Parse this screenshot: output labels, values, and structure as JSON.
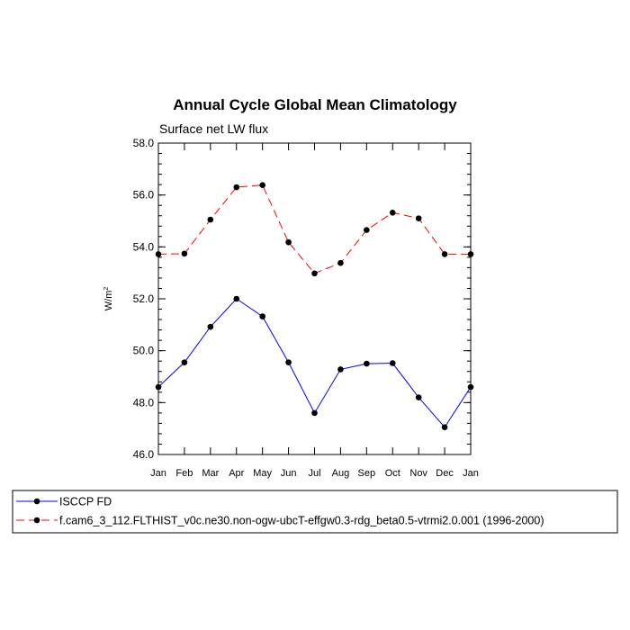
{
  "chart_data": {
    "type": "line",
    "title": "Annual Cycle Global Mean Climatology",
    "subtitle": "Surface net LW flux",
    "ylabel": "W/m",
    "ylabel_superscript": "2",
    "ylim": [
      46.0,
      58.0
    ],
    "yticks": [
      "46.0",
      "48.0",
      "50.0",
      "52.0",
      "54.0",
      "56.0",
      "58.0"
    ],
    "categories": [
      "Jan",
      "Feb",
      "Mar",
      "Apr",
      "May",
      "Jun",
      "Jul",
      "Aug",
      "Sep",
      "Oct",
      "Nov",
      "Dec",
      "Jan"
    ],
    "series": [
      {
        "name": "ISCCP FD",
        "color": "#0000ff",
        "dash": "solid",
        "values": [
          48.6,
          49.55,
          50.92,
          52.0,
          51.32,
          49.55,
          47.6,
          49.28,
          49.5,
          49.52,
          48.2,
          47.05,
          48.6
        ]
      },
      {
        "name": "f.cam6_3_112.FLTHIST_v0c.ne30.non-ogw-ubcT-effgw0.3-rdg_beta0.5-vtrmi2.0.001 (1996-2000)",
        "color": "#ff0000",
        "dash": "dashed",
        "values": [
          53.72,
          53.74,
          55.05,
          56.3,
          56.38,
          54.18,
          52.98,
          53.38,
          54.65,
          55.32,
          55.1,
          53.72,
          53.72
        ]
      }
    ],
    "grid": false,
    "legend_placement": "bottom"
  }
}
